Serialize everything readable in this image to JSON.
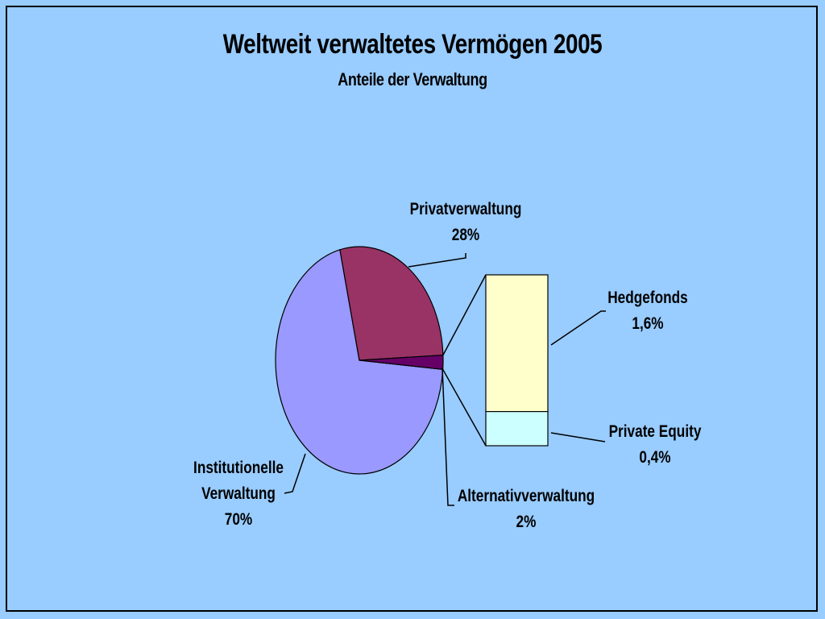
{
  "chart_data": {
    "type": "pie",
    "title": "Weltweit verwaltetes Vermögen 2005",
    "subtitle": "Anteile der Verwaltung",
    "slices": [
      {
        "label_lines": [
          "Institutionelle",
          "Verwaltung"
        ],
        "value_text": "70%",
        "value": 70,
        "color": "#9999ff"
      },
      {
        "label_lines": [
          "Privatverwaltung"
        ],
        "value_text": "28%",
        "value": 28,
        "color": "#993366"
      },
      {
        "label_lines": [
          "Alternativverwaltung"
        ],
        "value_text": "2%",
        "value": 2,
        "color": "#660066"
      }
    ],
    "breakdown": {
      "of": "Alternativverwaltung",
      "segments": [
        {
          "label": "Hedgefonds",
          "value_text": "1,6%",
          "value": 1.6,
          "color": "#ffffcc"
        },
        {
          "label": "Private Equity",
          "value_text": "0,4%",
          "value": 0.4,
          "color": "#ccffff"
        }
      ]
    }
  },
  "colors": {
    "background": "#99ccff",
    "outline": "#000000"
  }
}
